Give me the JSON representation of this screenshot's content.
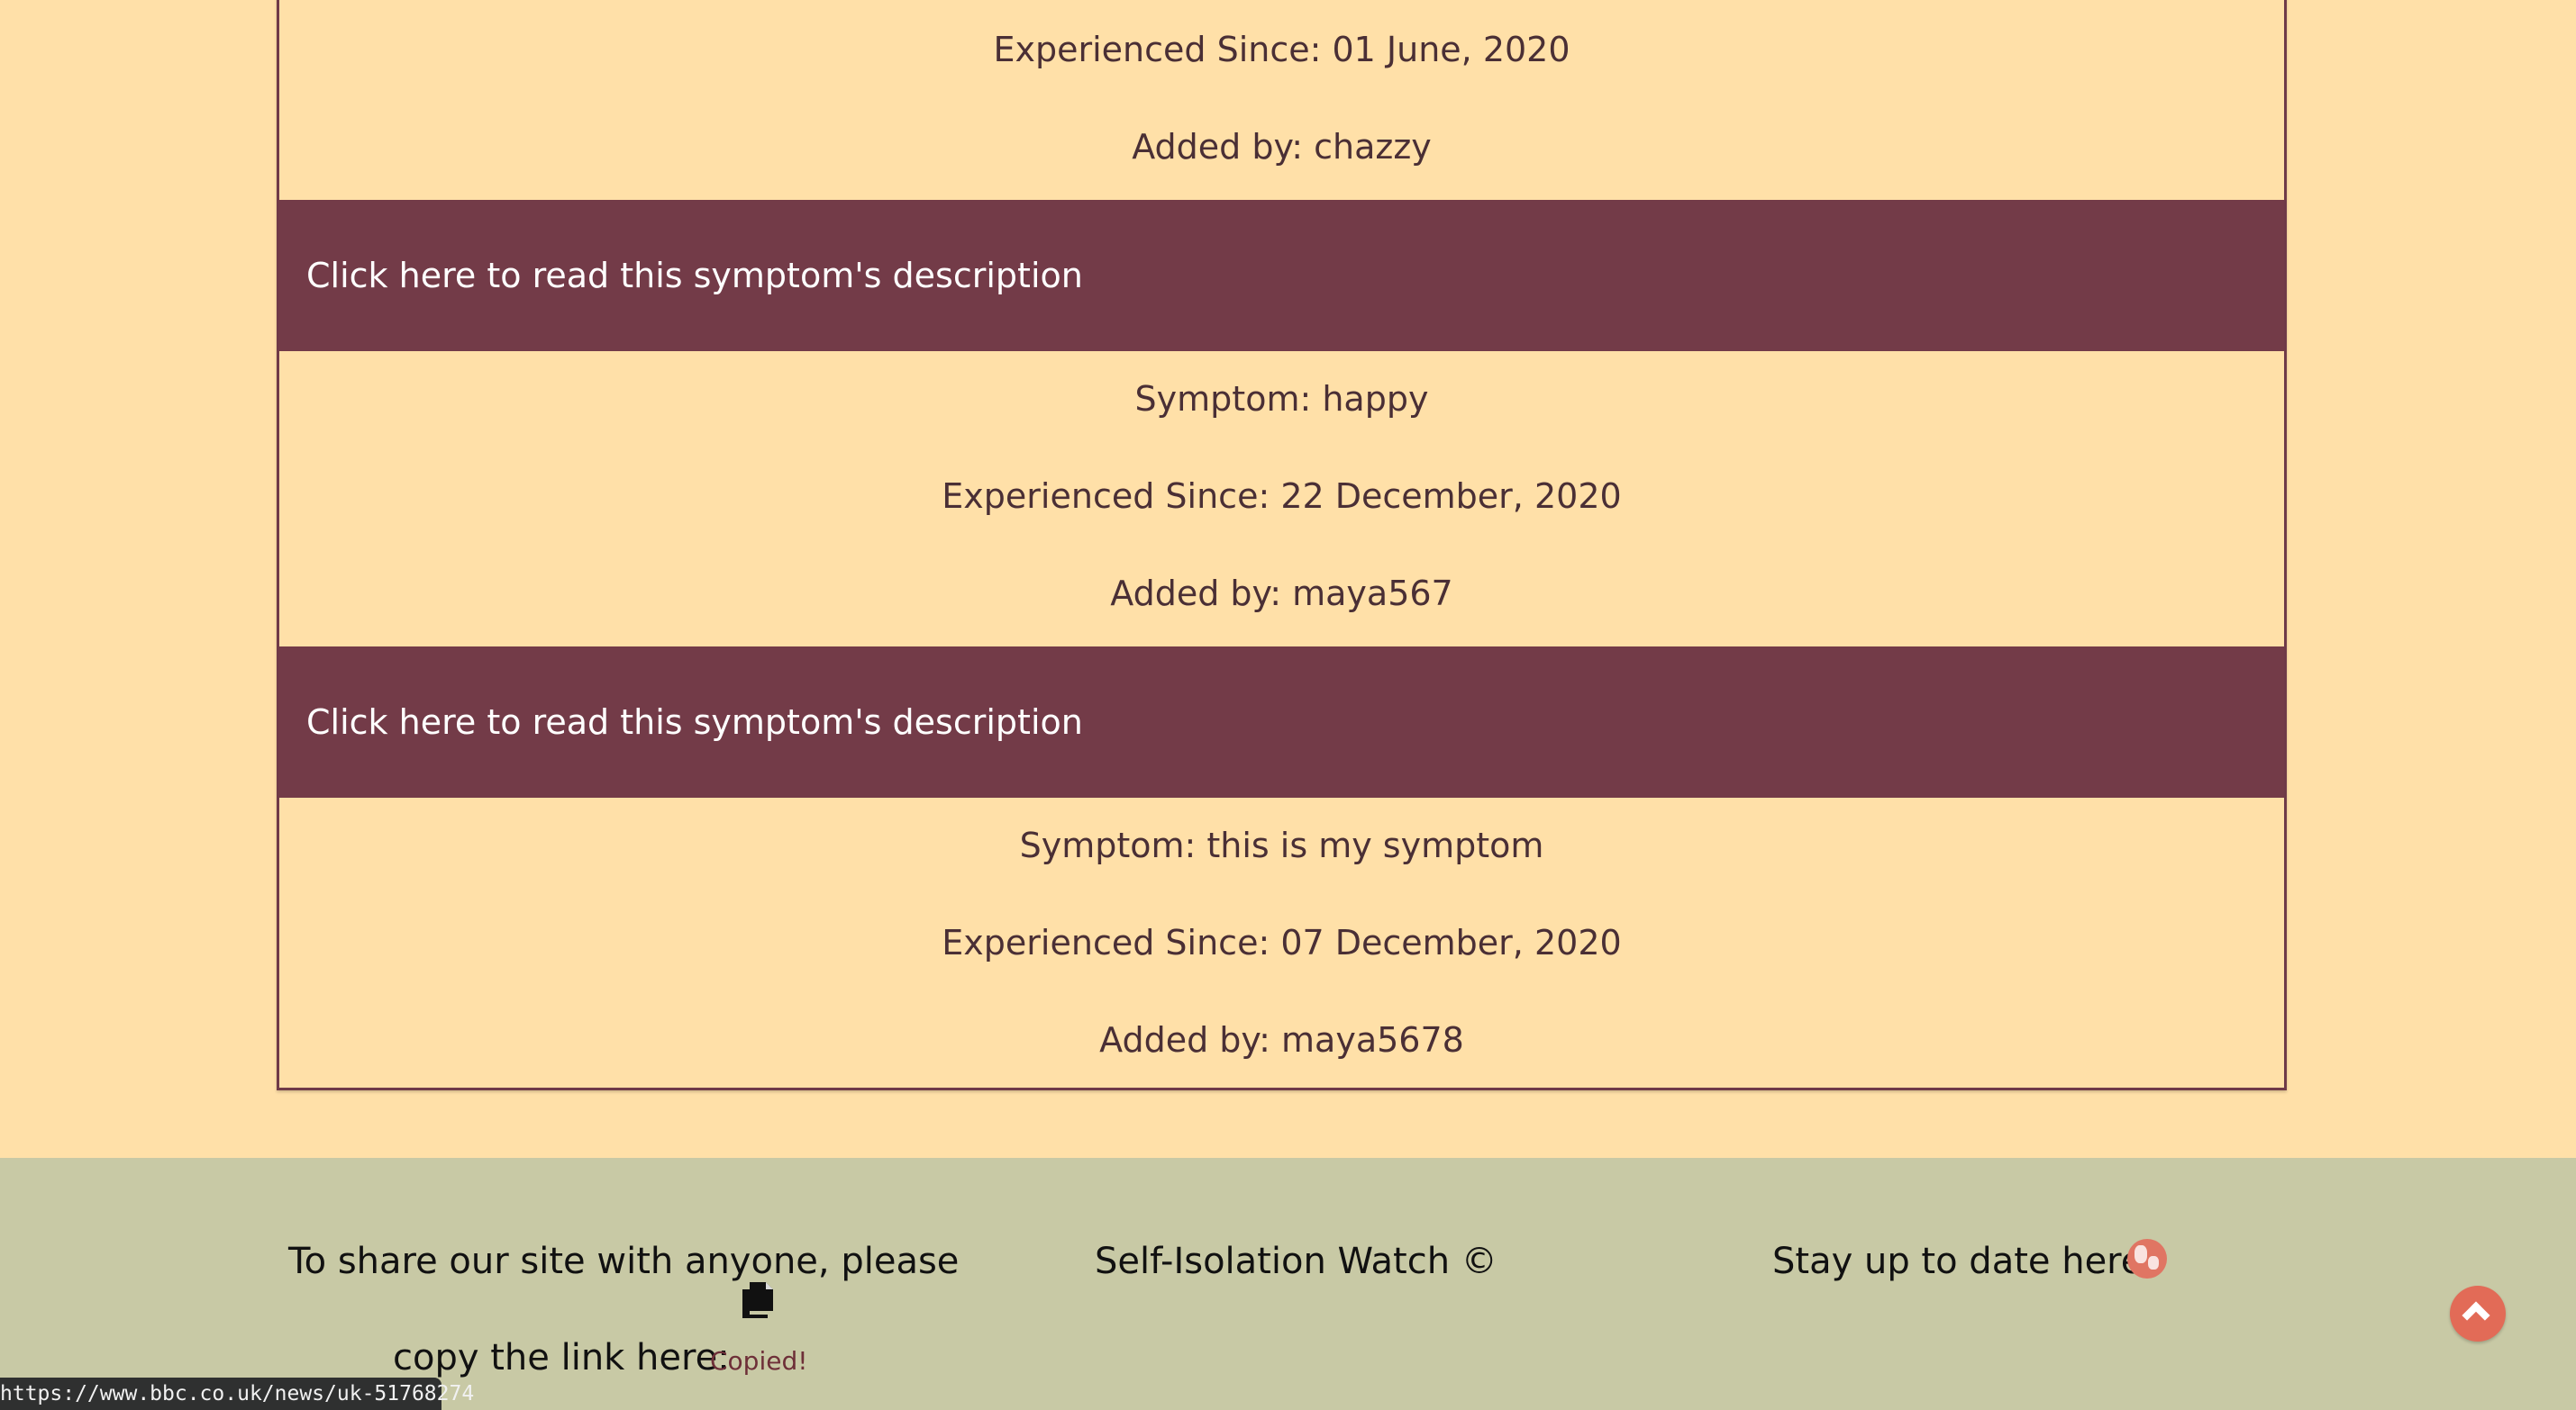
{
  "symptoms": [
    {
      "experienced_since_label": "Experienced Since: 01 June, 2020",
      "added_by_label": "Added by: chazzy"
    },
    {
      "description_cta": "Click here to read this symptom's description",
      "symptom_label": "Symptom: happy",
      "experienced_since_label": "Experienced Since: 22 December, 2020",
      "added_by_label": "Added by: maya567"
    },
    {
      "description_cta": "Click here to read this symptom's description",
      "symptom_label": "Symptom: this is my symptom",
      "experienced_since_label": "Experienced Since: 07 December, 2020",
      "added_by_label": "Added by: maya5678"
    }
  ],
  "first_description_cta": "Click here to read this symptom's description",
  "footer": {
    "share_line_1": "To share our site with anyone, please",
    "share_line_2": "copy the link here:",
    "copied_label": "Copied!",
    "copyright_label": "Self-Isolation Watch ©",
    "stay_updated_label": "Stay up to date here",
    "icons": {
      "copy": "copy-icon",
      "globe": "globe-icon",
      "scroll_top": "chevron-up-icon"
    },
    "colors": {
      "footer_bg": "#c8c9a5",
      "accent": "#e26b57"
    }
  },
  "status_bar": {
    "url": "https://www.bbc.co.uk/news/uk-51768274"
  },
  "colors": {
    "page_bg": "#ffe0a8",
    "card_border": "#6f3a48",
    "description_bar": "#733b48",
    "text": "#4a2f35"
  }
}
